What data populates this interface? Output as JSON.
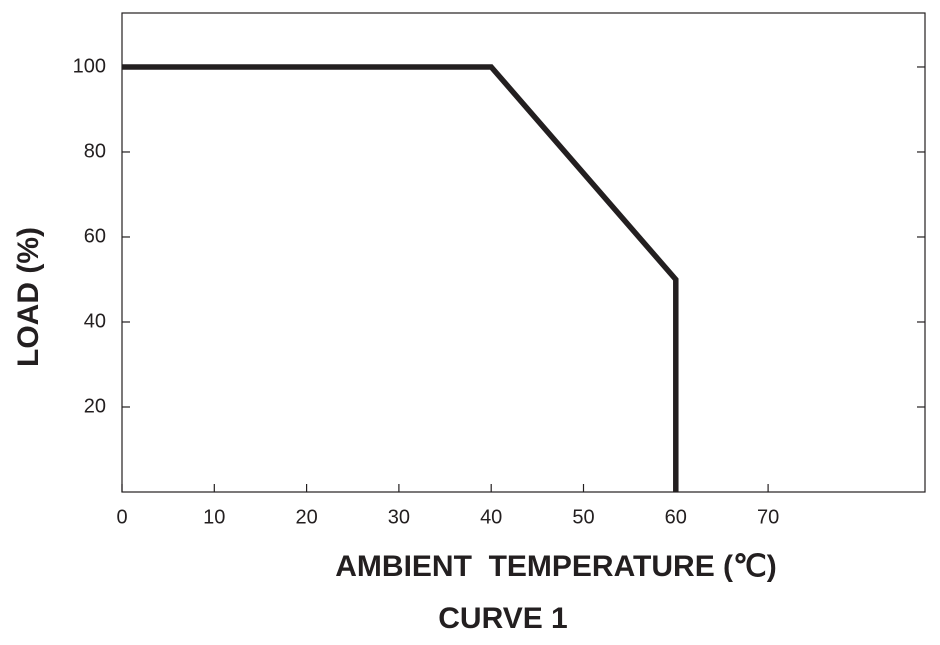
{
  "chart_data": {
    "type": "line",
    "caption": "CURVE 1",
    "xlabel": "AMBIENT  TEMPERATURE (℃)",
    "ylabel": "LOAD (%)",
    "x": [
      0,
      40,
      60,
      60
    ],
    "series": [
      {
        "color": "#231f20",
        "values": [
          100,
          100,
          50,
          0
        ]
      }
    ],
    "xlim": [
      0,
      87
    ],
    "ylim": [
      0,
      112.7
    ],
    "xticks": [
      0,
      10,
      20,
      30,
      40,
      50,
      60,
      70
    ],
    "yticks": [
      20,
      40,
      60,
      80,
      100
    ]
  }
}
